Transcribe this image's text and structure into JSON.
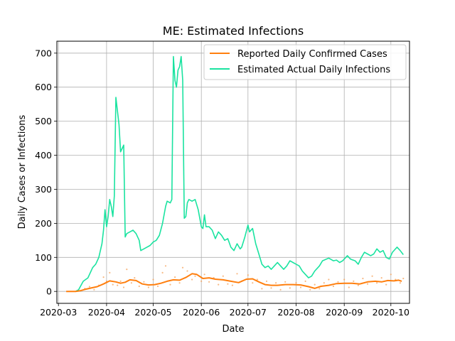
{
  "chart_data": {
    "type": "line",
    "title": "ME: Estimated Infections",
    "xlabel": "Date",
    "ylabel": "Daily Cases or Infections",
    "xlim": [
      "2020-02-29",
      "2020-10-13"
    ],
    "ylim": [
      -35,
      735
    ],
    "x_ticks": [
      "2020-03-01",
      "2020-04-01",
      "2020-05-01",
      "2020-06-01",
      "2020-07-01",
      "2020-08-01",
      "2020-09-01",
      "2020-10-01"
    ],
    "x_tick_labels": [
      "2020-03",
      "2020-04",
      "2020-05",
      "2020-06",
      "2020-07",
      "2020-08",
      "2020-09",
      "2020-10"
    ],
    "y_ticks": [
      0,
      100,
      200,
      300,
      400,
      500,
      600,
      700
    ],
    "grid": true,
    "legend_position": "upper right",
    "series": [
      {
        "name": "Reported Daily Confirmed Cases",
        "color": "#ff7f0e",
        "style": "line",
        "points": [
          [
            "2020-03-06",
            0
          ],
          [
            "2020-03-12",
            0
          ],
          [
            "2020-03-15",
            2
          ],
          [
            "2020-03-18",
            6
          ],
          [
            "2020-03-22",
            10
          ],
          [
            "2020-03-26",
            14
          ],
          [
            "2020-03-30",
            22
          ],
          [
            "2020-04-03",
            31
          ],
          [
            "2020-04-07",
            28
          ],
          [
            "2020-04-10",
            24
          ],
          [
            "2020-04-13",
            27
          ],
          [
            "2020-04-16",
            34
          ],
          [
            "2020-04-20",
            32
          ],
          [
            "2020-04-24",
            22
          ],
          [
            "2020-04-28",
            19
          ],
          [
            "2020-05-02",
            20
          ],
          [
            "2020-05-06",
            24
          ],
          [
            "2020-05-10",
            30
          ],
          [
            "2020-05-14",
            34
          ],
          [
            "2020-05-18",
            33
          ],
          [
            "2020-05-22",
            41
          ],
          [
            "2020-05-26",
            52
          ],
          [
            "2020-05-29",
            50
          ],
          [
            "2020-06-02",
            38
          ],
          [
            "2020-06-06",
            40
          ],
          [
            "2020-06-10",
            36
          ],
          [
            "2020-06-15",
            34
          ],
          [
            "2020-06-20",
            30
          ],
          [
            "2020-06-25",
            26
          ],
          [
            "2020-06-30",
            36
          ],
          [
            "2020-07-04",
            37
          ],
          [
            "2020-07-08",
            28
          ],
          [
            "2020-07-12",
            20
          ],
          [
            "2020-07-16",
            18
          ],
          [
            "2020-07-20",
            18
          ],
          [
            "2020-07-25",
            20
          ],
          [
            "2020-07-30",
            20
          ],
          [
            "2020-08-04",
            19
          ],
          [
            "2020-08-09",
            14
          ],
          [
            "2020-08-13",
            9
          ],
          [
            "2020-08-17",
            15
          ],
          [
            "2020-08-22",
            18
          ],
          [
            "2020-08-27",
            23
          ],
          [
            "2020-09-01",
            24
          ],
          [
            "2020-09-06",
            24
          ],
          [
            "2020-09-11",
            22
          ],
          [
            "2020-09-16",
            28
          ],
          [
            "2020-09-21",
            30
          ],
          [
            "2020-09-25",
            28
          ],
          [
            "2020-09-29",
            32
          ],
          [
            "2020-10-03",
            31
          ],
          [
            "2020-10-06",
            33
          ],
          [
            "2020-10-08",
            30
          ]
        ]
      },
      {
        "name": "Estimated Actual Daily Infections",
        "color": "#1ae3a0",
        "style": "line",
        "points": [
          [
            "2020-03-12",
            0
          ],
          [
            "2020-03-14",
            5
          ],
          [
            "2020-03-17",
            30
          ],
          [
            "2020-03-20",
            40
          ],
          [
            "2020-03-23",
            70
          ],
          [
            "2020-03-25",
            80
          ],
          [
            "2020-03-27",
            100
          ],
          [
            "2020-03-29",
            140
          ],
          [
            "2020-03-30",
            180
          ],
          [
            "2020-03-31",
            240
          ],
          [
            "2020-04-01",
            190
          ],
          [
            "2020-04-02",
            220
          ],
          [
            "2020-04-03",
            270
          ],
          [
            "2020-04-04",
            250
          ],
          [
            "2020-04-05",
            220
          ],
          [
            "2020-04-06",
            280
          ],
          [
            "2020-04-07",
            570
          ],
          [
            "2020-04-09",
            490
          ],
          [
            "2020-04-10",
            410
          ],
          [
            "2020-04-11",
            420
          ],
          [
            "2020-04-12",
            430
          ],
          [
            "2020-04-13",
            160
          ],
          [
            "2020-04-14",
            170
          ],
          [
            "2020-04-16",
            175
          ],
          [
            "2020-04-18",
            180
          ],
          [
            "2020-04-20",
            170
          ],
          [
            "2020-04-22",
            150
          ],
          [
            "2020-04-23",
            120
          ],
          [
            "2020-04-25",
            125
          ],
          [
            "2020-04-27",
            130
          ],
          [
            "2020-04-29",
            135
          ],
          [
            "2020-05-01",
            145
          ],
          [
            "2020-05-03",
            150
          ],
          [
            "2020-05-05",
            165
          ],
          [
            "2020-05-07",
            200
          ],
          [
            "2020-05-09",
            250
          ],
          [
            "2020-05-10",
            265
          ],
          [
            "2020-05-12",
            260
          ],
          [
            "2020-05-13",
            270
          ],
          [
            "2020-05-14",
            690
          ],
          [
            "2020-05-15",
            620
          ],
          [
            "2020-05-16",
            600
          ],
          [
            "2020-05-17",
            650
          ],
          [
            "2020-05-18",
            660
          ],
          [
            "2020-05-19",
            690
          ],
          [
            "2020-05-20",
            620
          ],
          [
            "2020-05-21",
            215
          ],
          [
            "2020-05-22",
            220
          ],
          [
            "2020-05-23",
            260
          ],
          [
            "2020-05-24",
            270
          ],
          [
            "2020-05-26",
            265
          ],
          [
            "2020-05-28",
            270
          ],
          [
            "2020-05-30",
            240
          ],
          [
            "2020-06-01",
            190
          ],
          [
            "2020-06-02",
            185
          ],
          [
            "2020-06-03",
            225
          ],
          [
            "2020-06-04",
            190
          ],
          [
            "2020-06-06",
            190
          ],
          [
            "2020-06-08",
            180
          ],
          [
            "2020-06-10",
            155
          ],
          [
            "2020-06-12",
            175
          ],
          [
            "2020-06-14",
            165
          ],
          [
            "2020-06-16",
            150
          ],
          [
            "2020-06-18",
            155
          ],
          [
            "2020-06-20",
            130
          ],
          [
            "2020-06-22",
            120
          ],
          [
            "2020-06-24",
            140
          ],
          [
            "2020-06-26",
            125
          ],
          [
            "2020-06-27",
            130
          ],
          [
            "2020-06-29",
            160
          ],
          [
            "2020-07-01",
            195
          ],
          [
            "2020-07-02",
            175
          ],
          [
            "2020-07-04",
            185
          ],
          [
            "2020-07-06",
            140
          ],
          [
            "2020-07-08",
            110
          ],
          [
            "2020-07-10",
            80
          ],
          [
            "2020-07-12",
            70
          ],
          [
            "2020-07-14",
            75
          ],
          [
            "2020-07-16",
            65
          ],
          [
            "2020-07-18",
            75
          ],
          [
            "2020-07-20",
            85
          ],
          [
            "2020-07-22",
            75
          ],
          [
            "2020-07-24",
            65
          ],
          [
            "2020-07-26",
            75
          ],
          [
            "2020-07-28",
            90
          ],
          [
            "2020-07-30",
            85
          ],
          [
            "2020-08-01",
            80
          ],
          [
            "2020-08-03",
            75
          ],
          [
            "2020-08-05",
            60
          ],
          [
            "2020-08-07",
            50
          ],
          [
            "2020-08-09",
            40
          ],
          [
            "2020-08-11",
            45
          ],
          [
            "2020-08-13",
            60
          ],
          [
            "2020-08-16",
            75
          ],
          [
            "2020-08-18",
            90
          ],
          [
            "2020-08-22",
            98
          ],
          [
            "2020-08-25",
            90
          ],
          [
            "2020-08-27",
            92
          ],
          [
            "2020-08-29",
            85
          ],
          [
            "2020-08-31",
            90
          ],
          [
            "2020-09-03",
            105
          ],
          [
            "2020-09-05",
            95
          ],
          [
            "2020-09-08",
            90
          ],
          [
            "2020-09-10",
            80
          ],
          [
            "2020-09-12",
            100
          ],
          [
            "2020-09-14",
            115
          ],
          [
            "2020-09-16",
            110
          ],
          [
            "2020-09-18",
            105
          ],
          [
            "2020-09-20",
            110
          ],
          [
            "2020-09-22",
            125
          ],
          [
            "2020-09-24",
            115
          ],
          [
            "2020-09-26",
            120
          ],
          [
            "2020-09-28",
            100
          ],
          [
            "2020-09-30",
            95
          ],
          [
            "2020-10-02",
            115
          ],
          [
            "2020-10-05",
            130
          ],
          [
            "2020-10-07",
            120
          ],
          [
            "2020-10-09",
            108
          ]
        ]
      },
      {
        "name": "",
        "color": "#f5a25a",
        "style": "scatter",
        "points": [
          [
            "2020-03-18",
            8
          ],
          [
            "2020-03-21",
            14
          ],
          [
            "2020-03-24",
            5
          ],
          [
            "2020-03-27",
            18
          ],
          [
            "2020-03-30",
            42
          ],
          [
            "2020-04-01",
            30
          ],
          [
            "2020-04-03",
            55
          ],
          [
            "2020-04-05",
            20
          ],
          [
            "2020-04-08",
            18
          ],
          [
            "2020-04-10",
            30
          ],
          [
            "2020-04-12",
            12
          ],
          [
            "2020-04-14",
            65
          ],
          [
            "2020-04-17",
            25
          ],
          [
            "2020-04-19",
            40
          ],
          [
            "2020-04-22",
            15
          ],
          [
            "2020-04-25",
            28
          ],
          [
            "2020-04-28",
            12
          ],
          [
            "2020-05-01",
            35
          ],
          [
            "2020-05-04",
            15
          ],
          [
            "2020-05-07",
            55
          ],
          [
            "2020-05-09",
            75
          ],
          [
            "2020-05-12",
            20
          ],
          [
            "2020-05-15",
            42
          ],
          [
            "2020-05-18",
            25
          ],
          [
            "2020-05-20",
            70
          ],
          [
            "2020-05-23",
            60
          ],
          [
            "2020-05-26",
            35
          ],
          [
            "2020-05-28",
            45
          ],
          [
            "2020-06-01",
            30
          ],
          [
            "2020-06-03",
            50
          ],
          [
            "2020-06-06",
            28
          ],
          [
            "2020-06-09",
            40
          ],
          [
            "2020-06-12",
            20
          ],
          [
            "2020-06-15",
            45
          ],
          [
            "2020-06-18",
            22
          ],
          [
            "2020-06-21",
            18
          ],
          [
            "2020-06-24",
            52
          ],
          [
            "2020-06-27",
            30
          ],
          [
            "2020-07-01",
            48
          ],
          [
            "2020-07-04",
            25
          ],
          [
            "2020-07-07",
            35
          ],
          [
            "2020-07-10",
            8
          ],
          [
            "2020-07-13",
            30
          ],
          [
            "2020-07-16",
            10
          ],
          [
            "2020-07-19",
            25
          ],
          [
            "2020-07-22",
            5
          ],
          [
            "2020-07-25",
            28
          ],
          [
            "2020-07-28",
            10
          ],
          [
            "2020-08-01",
            25
          ],
          [
            "2020-08-04",
            12
          ],
          [
            "2020-08-07",
            30
          ],
          [
            "2020-08-10",
            5
          ],
          [
            "2020-08-13",
            20
          ],
          [
            "2020-08-16",
            8
          ],
          [
            "2020-08-19",
            25
          ],
          [
            "2020-08-22",
            35
          ],
          [
            "2020-08-25",
            15
          ],
          [
            "2020-08-28",
            28
          ],
          [
            "2020-09-01",
            35
          ],
          [
            "2020-09-04",
            12
          ],
          [
            "2020-09-07",
            30
          ],
          [
            "2020-09-10",
            18
          ],
          [
            "2020-09-13",
            38
          ],
          [
            "2020-09-16",
            22
          ],
          [
            "2020-09-19",
            45
          ],
          [
            "2020-09-22",
            25
          ],
          [
            "2020-09-25",
            40
          ],
          [
            "2020-09-28",
            20
          ],
          [
            "2020-10-01",
            50
          ],
          [
            "2020-10-04",
            35
          ],
          [
            "2020-10-07",
            25
          ],
          [
            "2020-10-09",
            38
          ]
        ]
      }
    ]
  }
}
